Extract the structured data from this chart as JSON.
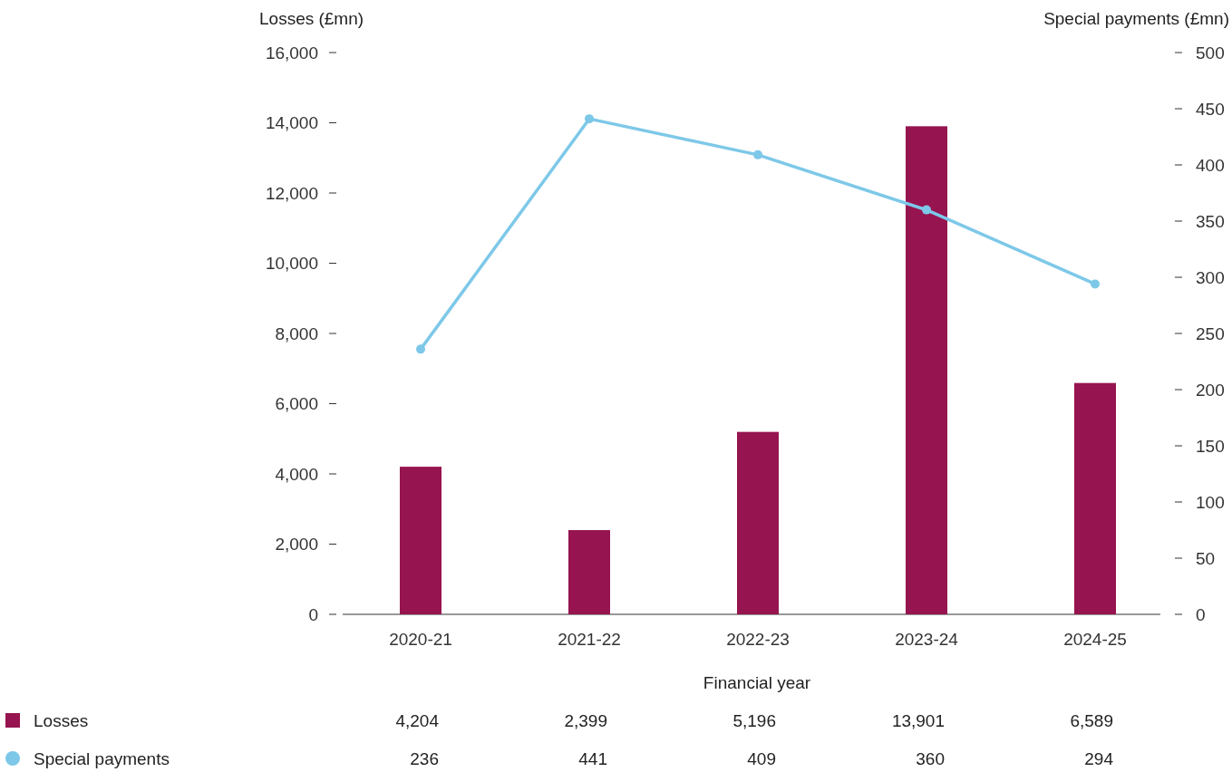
{
  "chart_data": {
    "type": "bar",
    "xlabel": "Financial year",
    "ylabel": "Losses (£mn)",
    "y2label": "Special payments (£mn)",
    "categories": [
      "2020-21",
      "2021-22",
      "2022-23",
      "2023-24",
      "2024-25"
    ],
    "series": [
      {
        "name": "Losses",
        "color": "#96144f",
        "values": [
          4204,
          2399,
          5196,
          13901,
          6589
        ],
        "value_labels": [
          "4,204",
          "2,399",
          "5,196",
          "13,901",
          "6,589"
        ]
      },
      {
        "name": "Special payments",
        "type": "line",
        "axis": "y2",
        "color": "#7dc8e8",
        "values": [
          236,
          441,
          409,
          360,
          294
        ],
        "value_labels": [
          "236",
          "441",
          "409",
          "360",
          "294"
        ]
      }
    ],
    "ylim": [
      0,
      16000
    ],
    "yticks": [
      0,
      {
        "value": 2000,
        "label": "2,000"
      },
      {
        "value": 4000,
        "label": "4,000"
      },
      {
        "value": 6000,
        "label": "6,000"
      },
      {
        "value": 8000,
        "label": "8,000"
      },
      {
        "value": 10000,
        "label": "10,000"
      },
      {
        "value": 12000,
        "label": "12,000"
      },
      {
        "value": 14000,
        "label": "14,000"
      },
      {
        "value": 16000,
        "label": "16,000"
      }
    ],
    "y2lim": [
      0,
      500
    ],
    "y2ticks": [
      0,
      50,
      100,
      150,
      200,
      250,
      300,
      350,
      400,
      450,
      500
    ],
    "marker": "circle",
    "legend": "bottom left"
  }
}
